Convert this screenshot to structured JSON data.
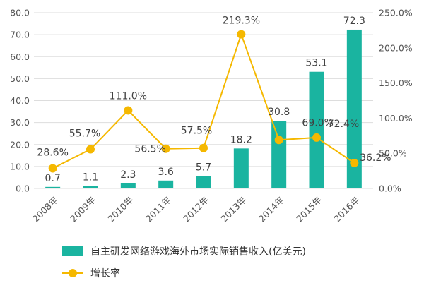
{
  "chart_data": {
    "type": "bar",
    "categories": [
      "2008年",
      "2009年",
      "2010年",
      "2011年",
      "2012年",
      "2013年",
      "2014年",
      "2015年",
      "2016年"
    ],
    "series": [
      {
        "name": "自主研发网络游戏海外市场实际销售收入(亿美元)",
        "type": "bar",
        "axis": "left",
        "color": "#1ab4a0",
        "values": [
          0.7,
          1.1,
          2.3,
          3.6,
          5.7,
          18.2,
          30.8,
          53.1,
          72.3
        ],
        "labels": [
          "0.7",
          "1.1",
          "2.3",
          "3.6",
          "5.7",
          "18.2",
          "30.8",
          "53.1",
          "72.3"
        ]
      },
      {
        "name": "增长率",
        "type": "line",
        "axis": "right",
        "color": "#f5b800",
        "values": [
          28.6,
          55.7,
          111.0,
          56.5,
          57.5,
          219.3,
          69.0,
          72.4,
          36.2
        ],
        "labels": [
          "28.6%",
          "55.7%",
          "111.0%",
          "56.5%",
          "57.5%",
          "219.3%",
          "69.0%",
          "72.4%",
          "36.2%"
        ]
      }
    ],
    "y_left": {
      "range": [
        0,
        80
      ],
      "ticks": [
        "0.0",
        "10.0",
        "20.0",
        "30.0",
        "40.0",
        "50.0",
        "60.0",
        "70.0",
        "80.0"
      ]
    },
    "y_right": {
      "range": [
        0,
        250
      ],
      "ticks": [
        "0.0%",
        "50.0%",
        "100.0%",
        "150.0%",
        "200.0%",
        "250.0%"
      ]
    },
    "grid": true,
    "legend_position": "bottom"
  }
}
